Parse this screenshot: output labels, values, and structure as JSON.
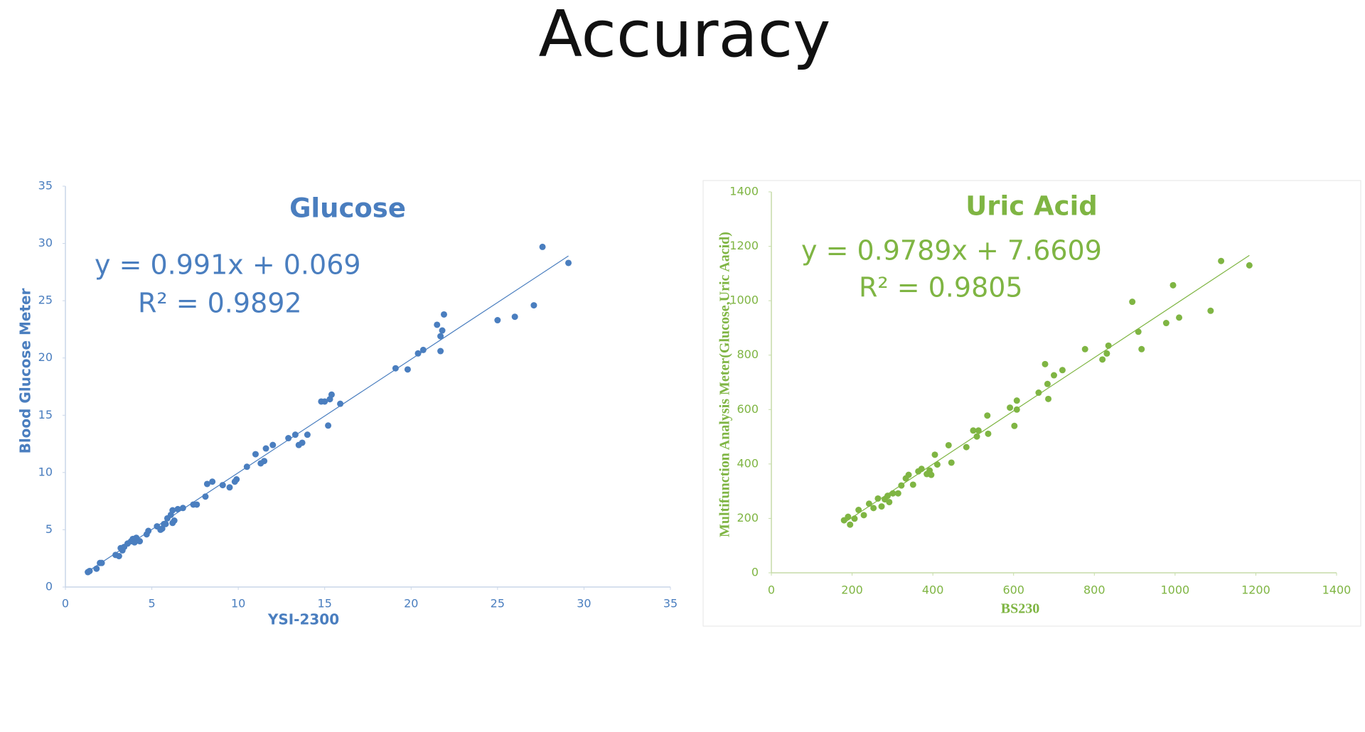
{
  "title": "Accuracy",
  "chart_data": [
    {
      "type": "scatter",
      "title": "Glucose",
      "equation": "y = 0.991x + 0.069",
      "r_squared": "R² = 0.9892",
      "x_label": "YSI-2300",
      "y_label": "Blood Glucose Meter",
      "color": "#4a7ebf",
      "trendline": {
        "slope": 0.991,
        "intercept": 0.069
      },
      "xlim": [
        0,
        35
      ],
      "ylim": [
        0,
        35
      ],
      "xticks": [
        0,
        5,
        10,
        15,
        20,
        25,
        30,
        35
      ],
      "yticks": [
        0,
        5,
        10,
        15,
        20,
        25,
        30,
        35
      ],
      "x": [
        1.3,
        1.4,
        1.8,
        2.0,
        2.1,
        2.9,
        3.1,
        3.2,
        3.3,
        3.4,
        3.6,
        3.8,
        3.9,
        4.1,
        4.0,
        4.3,
        4.7,
        4.8,
        5.3,
        5.5,
        5.6,
        5.7,
        5.9,
        5.8,
        6.1,
        6.2,
        6.3,
        6.2,
        6.5,
        6.8,
        7.4,
        7.6,
        8.1,
        8.2,
        8.5,
        9.1,
        9.5,
        9.8,
        9.9,
        10.5,
        11.0,
        11.3,
        11.5,
        11.6,
        12.0,
        12.9,
        13.3,
        13.5,
        13.7,
        14.0,
        14.8,
        15.0,
        15.3,
        15.4,
        15.2,
        15.9,
        19.1,
        19.8,
        20.4,
        20.7,
        21.5,
        21.7,
        21.7,
        21.8,
        21.9,
        25.0,
        26.0,
        27.1,
        27.6,
        29.1
      ],
      "y": [
        1.3,
        1.4,
        1.6,
        2.1,
        2.1,
        2.8,
        2.7,
        3.4,
        3.2,
        3.5,
        3.8,
        4.0,
        4.2,
        4.3,
        3.9,
        4.0,
        4.6,
        4.9,
        5.3,
        5.0,
        5.1,
        5.5,
        6.0,
        5.5,
        6.3,
        5.6,
        5.8,
        6.7,
        6.8,
        6.9,
        7.2,
        7.2,
        7.9,
        9.0,
        9.2,
        8.9,
        8.7,
        9.2,
        9.4,
        10.5,
        11.6,
        10.8,
        11.0,
        12.1,
        12.4,
        13.0,
        13.3,
        12.4,
        12.6,
        13.3,
        16.2,
        16.2,
        16.4,
        16.8,
        14.1,
        16.0,
        19.1,
        19.0,
        20.4,
        20.7,
        22.9,
        20.6,
        21.9,
        22.4,
        23.8,
        23.3,
        23.6,
        24.6,
        29.7,
        28.3
      ]
    },
    {
      "type": "scatter",
      "title": "Uric Acid",
      "equation": "y = 0.9789x + 7.6609",
      "r_squared": "R² = 0.9805",
      "x_label": "BS230",
      "y_label": "Multifunction Analysis Meter(Glucose,Uric Aacid)",
      "color": "#7fb543",
      "trendline": {
        "slope": 0.9789,
        "intercept": 7.6609
      },
      "xlim": [
        0,
        1400
      ],
      "ylim": [
        0,
        1400
      ],
      "xticks": [
        0,
        200,
        400,
        600,
        800,
        1000,
        1200,
        1400
      ],
      "yticks": [
        0,
        200,
        400,
        600,
        800,
        1000,
        1200,
        1400
      ],
      "x": [
        180,
        190,
        195,
        206,
        216,
        229,
        242,
        253,
        264,
        273,
        281,
        288,
        292,
        301,
        314,
        322,
        333,
        340,
        351,
        364,
        372,
        385,
        392,
        396,
        405,
        411,
        439,
        446,
        483,
        500,
        513,
        509,
        535,
        537,
        591,
        602,
        608,
        608,
        662,
        678,
        684,
        686,
        700,
        721,
        777,
        820,
        831,
        835,
        894,
        909,
        917,
        978,
        995,
        1010,
        1088,
        1114,
        1184
      ],
      "y": [
        193,
        206,
        177,
        199,
        231,
        212,
        254,
        238,
        273,
        244,
        270,
        283,
        260,
        292,
        292,
        321,
        347,
        360,
        324,
        373,
        382,
        363,
        376,
        360,
        434,
        398,
        469,
        405,
        462,
        523,
        523,
        501,
        578,
        511,
        607,
        540,
        633,
        600,
        662,
        767,
        694,
        639,
        726,
        745,
        822,
        784,
        806,
        835,
        996,
        886,
        822,
        918,
        1057,
        938,
        963,
        1146,
        1130
      ]
    }
  ]
}
